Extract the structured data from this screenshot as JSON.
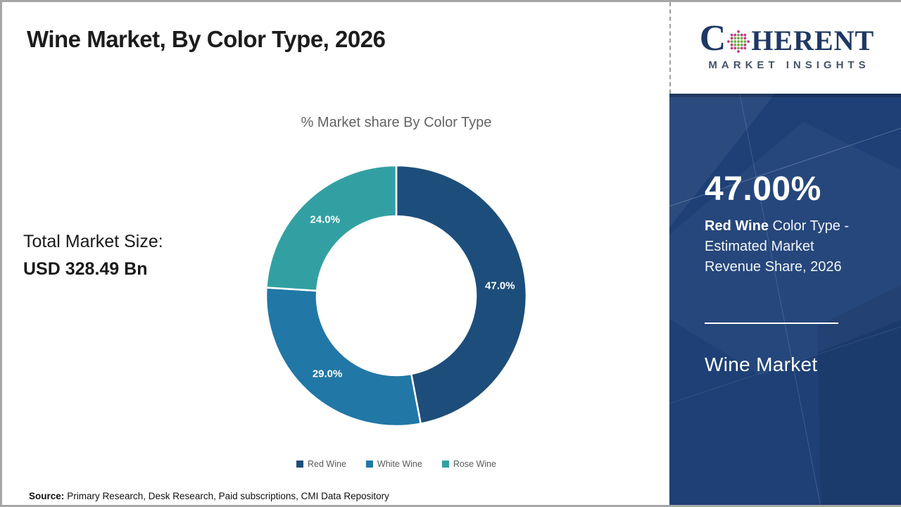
{
  "page": {
    "title": "Wine Market, By Color Type, 2026",
    "source_label": "Source:",
    "source_text": "Primary Research, Desk Research, Paid subscriptions, CMI Data Repository",
    "border_color": "#a6a6a6"
  },
  "logo": {
    "word_c": "C",
    "word_rest": "HERENT",
    "subtitle": "MARKET INSIGHTS",
    "navy": "#1f3864",
    "dot_colors": {
      "outer": "#c33a87",
      "mid": "#2e9aa6",
      "inner": "#6fae44"
    }
  },
  "left_stats": {
    "label": "Total Market Size:",
    "value": "USD 328.49 Bn"
  },
  "chart_data": {
    "type": "pie",
    "subtype": "donut",
    "title": "% Market share By Color Type",
    "categories": [
      "Red Wine",
      "White Wine",
      "Rose Wine"
    ],
    "values": [
      47.0,
      29.0,
      24.0
    ],
    "data_labels": [
      "47.0%",
      "29.0%",
      "24.0%"
    ],
    "colors": [
      "#1d4e7b",
      "#2177a6",
      "#32a0a2"
    ],
    "start_angle_deg": 0,
    "direction": "clockwise",
    "inner_radius_ratio": 0.61,
    "legend_position": "bottom"
  },
  "right_panel": {
    "stat_value": "47.00%",
    "desc_bold": "Red Wine",
    "desc_rest": " Color Type - Estimated Market Revenue Share, 2026",
    "market_name": "Wine Market",
    "bg_color": "#1e4077"
  }
}
